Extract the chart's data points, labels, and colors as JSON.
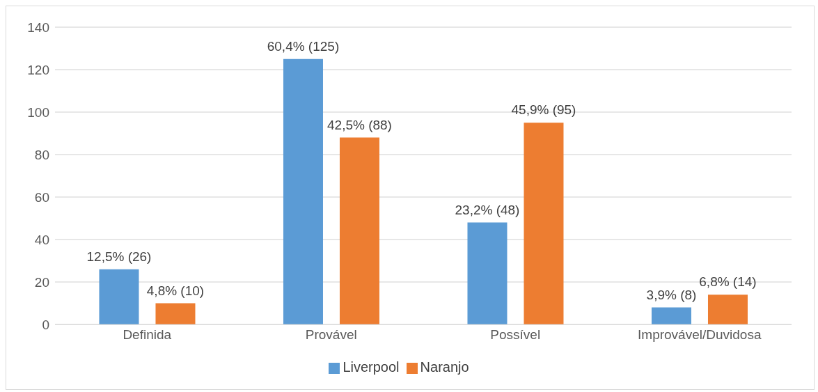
{
  "chart_data": {
    "type": "bar",
    "categories": [
      "Definida",
      "Provável",
      "Possível",
      "Improvável/Duvidosa"
    ],
    "series": [
      {
        "name": "Liverpool",
        "color": "#5b9bd5",
        "values": [
          26,
          125,
          48,
          8
        ],
        "value_labels": [
          "12,5% (26)",
          "60,4% (125)",
          "23,2% (48)",
          "3,9% (8)"
        ]
      },
      {
        "name": "Naranjo",
        "color": "#ed7d31",
        "values": [
          10,
          88,
          95,
          14
        ],
        "value_labels": [
          "4,8% (10)",
          "42,5% (88)",
          "45,9% (95)",
          "6,8% (14)"
        ]
      }
    ],
    "ylim": [
      0,
      140
    ],
    "yticks": [
      0,
      20,
      40,
      60,
      80,
      100,
      120,
      140
    ],
    "grid": "y",
    "legend": "bottom"
  }
}
